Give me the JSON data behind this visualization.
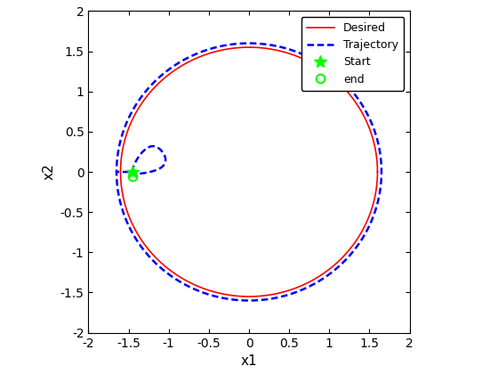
{
  "title": "",
  "xlabel": "x1",
  "ylabel": "x2",
  "xlim": [
    -2,
    2
  ],
  "ylim": [
    -2,
    2
  ],
  "xticks": [
    -2,
    -1.5,
    -1,
    -0.5,
    0,
    0.5,
    1,
    1.5,
    2
  ],
  "yticks": [
    -2,
    -1.5,
    -1,
    -0.5,
    0,
    0.5,
    1,
    1.5,
    2
  ],
  "desired_color": "#ff0000",
  "desired_linewidth": 1.2,
  "trajectory_color": "#0000ff",
  "trajectory_linewidth": 1.8,
  "start_color": "#00ff00",
  "end_color": "#00ff00",
  "circle_a": 1.6,
  "circle_b": 1.55,
  "traj_a": 1.65,
  "traj_b": 1.6,
  "start_x": -1.45,
  "start_y": 0.0,
  "end_x": -1.45,
  "end_y": -0.05,
  "legend_loc": "upper right",
  "fig_width": 5.6,
  "fig_height": 4.2,
  "dpi": 100
}
